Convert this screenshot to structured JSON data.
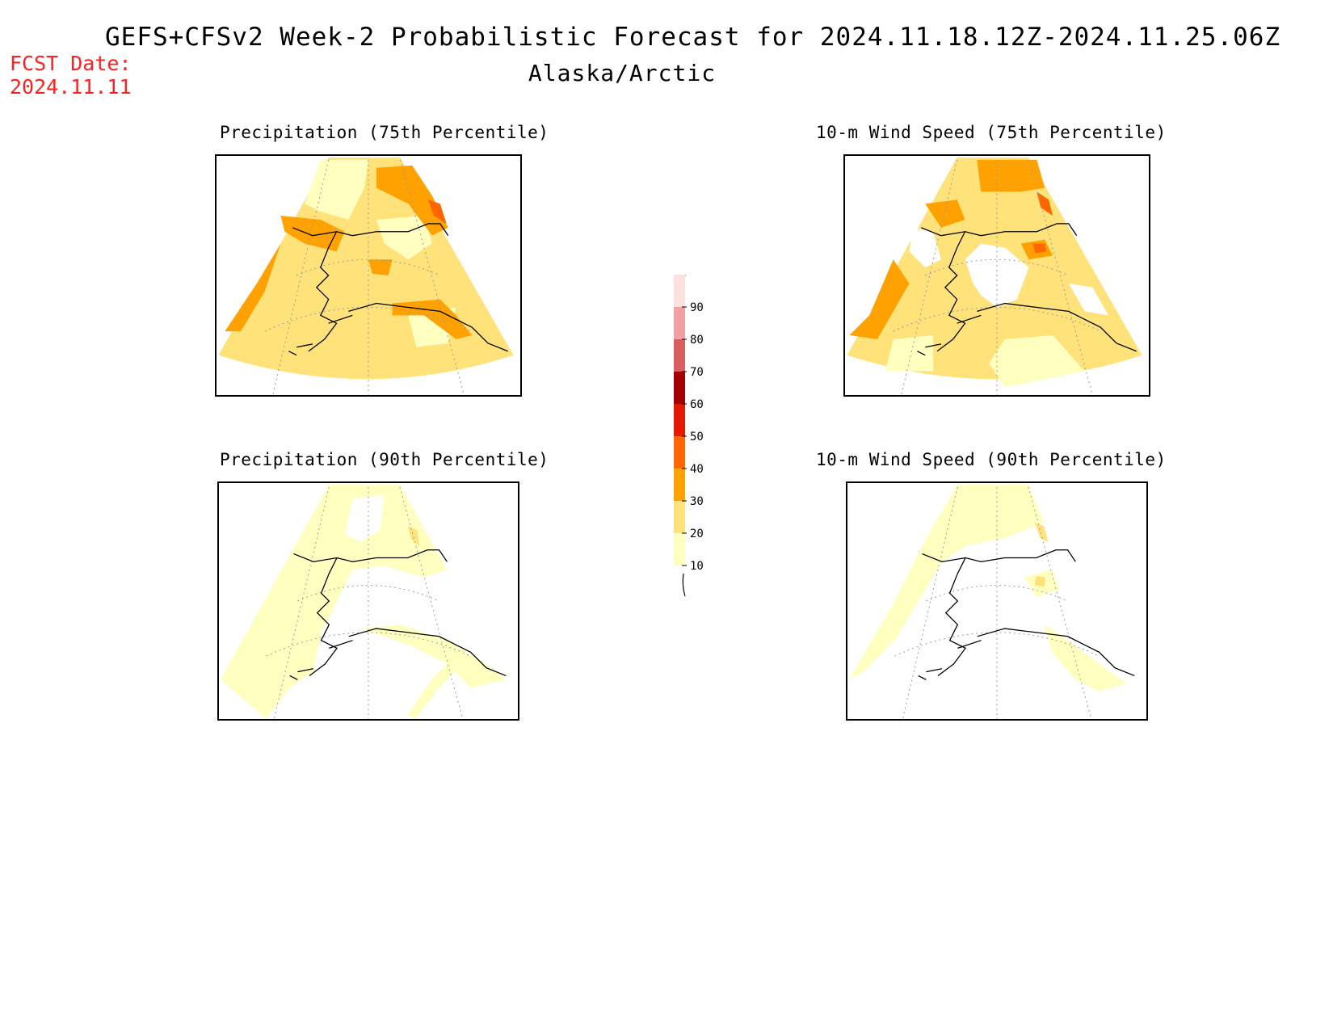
{
  "header": {
    "title": "GEFS+CFSv2 Week-2 Probabilistic Forecast for 2024.11.18.12Z-2024.11.25.06Z",
    "subtitle": "Alaska/Arctic",
    "fcst_label": "FCST Date:",
    "fcst_date": "2024.11.11"
  },
  "panels": [
    {
      "id": "precip75",
      "title": "Precipitation (75th Percentile)"
    },
    {
      "id": "wind75",
      "title": "10-m Wind Speed (75th Percentile)"
    },
    {
      "id": "precip90",
      "title": "Precipitation (90th Percentile)"
    },
    {
      "id": "wind90",
      "title": "10-m Wind Speed (90th Percentile)"
    }
  ],
  "legend": {
    "levels": [
      {
        "label": "10",
        "color": "#ffffc0"
      },
      {
        "label": "20",
        "color": "#ffe37a"
      },
      {
        "label": "30",
        "color": "#ffa100"
      },
      {
        "label": "40",
        "color": "#ff6600"
      },
      {
        "label": "50",
        "color": "#e31a00"
      },
      {
        "label": "60",
        "color": "#a50000"
      },
      {
        "label": "70",
        "color": "#d95f5f"
      },
      {
        "label": "80",
        "color": "#f1a1a1"
      },
      {
        "label": "90",
        "color": "#fde0e0"
      }
    ]
  },
  "colors": {
    "lightest": "#ffffc0",
    "light": "#ffe37a",
    "orange": "#ffa100",
    "darkorange": "#ff6600",
    "red": "#e31a00",
    "fcst_text": "#ff2020"
  }
}
